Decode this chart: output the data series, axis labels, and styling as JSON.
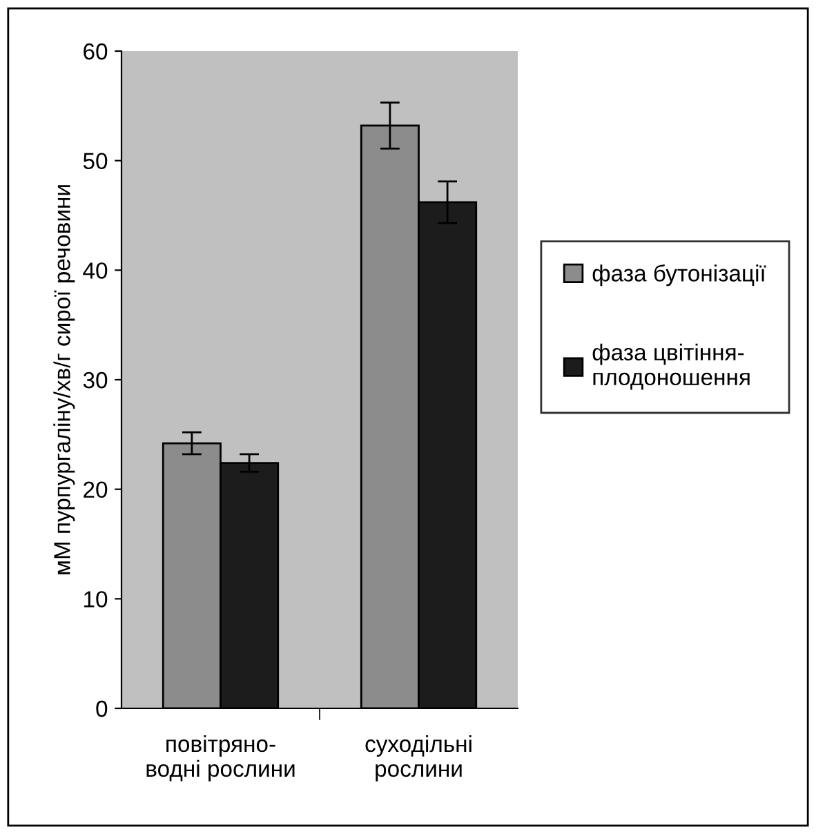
{
  "chart_data": {
    "type": "bar",
    "ylabel": "мМ пурпургаліну/хв/г сирої речовини",
    "categories": [
      "повітряно-\nводні рослини",
      "суходільні\nрослини"
    ],
    "series": [
      {
        "name": "фаза бутонізації",
        "color": "#8c8c8c",
        "values": [
          24.2,
          53.2
        ],
        "errors": [
          1.0,
          2.1
        ]
      },
      {
        "name": "фаза цвітіння-\nплодоношення",
        "color": "#1c1c1c",
        "values": [
          22.4,
          46.2
        ],
        "errors": [
          0.8,
          1.9
        ]
      }
    ],
    "ylim": [
      0,
      60
    ],
    "yticks": [
      0,
      10,
      20,
      30,
      40,
      50,
      60
    ],
    "grid": false,
    "legend": "right"
  }
}
